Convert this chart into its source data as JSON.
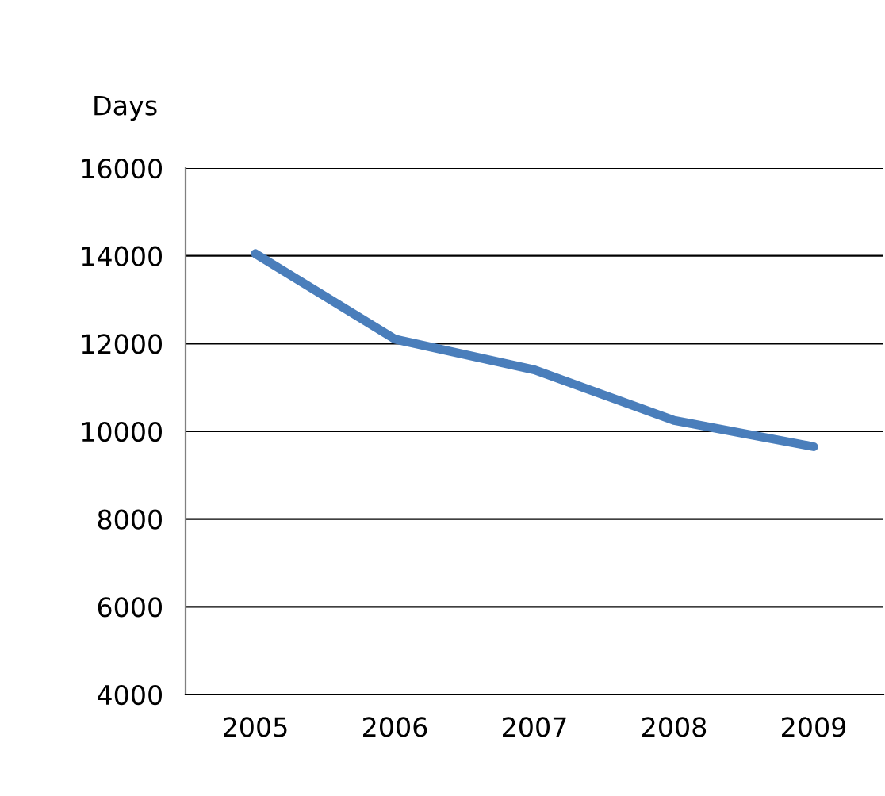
{
  "chart_data": {
    "type": "line",
    "ylabel": "Days",
    "categories": [
      "2005",
      "2006",
      "2007",
      "2008",
      "2009"
    ],
    "series": [
      {
        "color": "#4a7ebb",
        "values": [
          14050,
          12100,
          11400,
          10250,
          9650
        ]
      }
    ],
    "ylim": [
      4000,
      16000
    ],
    "yticks": [
      4000,
      6000,
      8000,
      10000,
      12000,
      14000,
      16000
    ],
    "grid": "y",
    "legend": false,
    "marker": "none",
    "line_style": "solid"
  }
}
